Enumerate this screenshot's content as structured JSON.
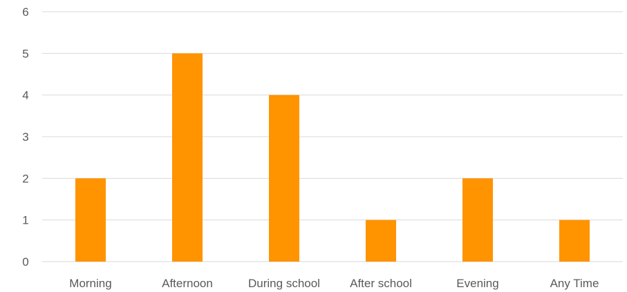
{
  "chart_data": {
    "type": "bar",
    "title": "",
    "xlabel": "",
    "ylabel": "",
    "categories": [
      "Morning",
      "Afternoon",
      "During school",
      "After school",
      "Evening",
      "Any Time"
    ],
    "values": [
      2,
      5,
      4,
      1,
      2,
      1
    ],
    "ylim": [
      0,
      6
    ],
    "yticks": [
      0,
      1,
      2,
      3,
      4,
      5,
      6
    ],
    "grid": true,
    "legend": "none",
    "bar_color": "#FF9300",
    "grid_color": "#D9D9D9",
    "text_color": "#595959"
  }
}
